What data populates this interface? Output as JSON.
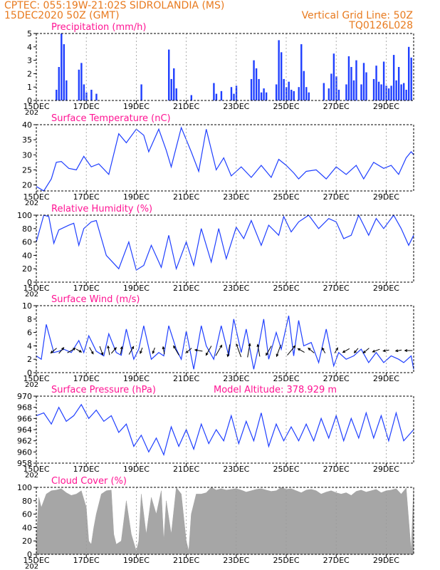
{
  "header": {
    "line1_left": "CPTEC:   055:19W-21:02S   SIDROLANDIA (MS)",
    "line2_left": "15DEC2020 50Z (GMT)",
    "line1_right": "Vertical Grid Line: 50Z",
    "line2_right": "TQ0126L028"
  },
  "colors": {
    "header": "#e87a1e",
    "title": "#ff1493",
    "series": "#1f3fff",
    "cloud": "#a6a6a6",
    "grid": "#9a9a9a",
    "axis": "#000000"
  },
  "x_axis": {
    "tick_labels": [
      "15DEC",
      "17DEC",
      "19DEC",
      "21DEC",
      "23DEC",
      "25DEC",
      "27DEC",
      "29DEC"
    ],
    "first_label_prefix": "202",
    "x_range_days": [
      15,
      30.1
    ]
  },
  "chart_data": [
    {
      "id": "precip",
      "type": "bar",
      "title": "Precipitation (mm/h)",
      "ylim": [
        0,
        5
      ],
      "yticks": [
        "0",
        "1",
        "2",
        "3",
        "4",
        "5"
      ],
      "x": [
        15.8,
        15.9,
        16.0,
        16.1,
        16.2,
        16.7,
        16.8,
        16.9,
        17.0,
        17.2,
        17.4,
        19.2,
        20.3,
        20.4,
        20.5,
        20.6,
        21.2,
        22.1,
        22.2,
        22.4,
        22.8,
        22.9,
        23.0,
        23.6,
        23.7,
        23.8,
        23.9,
        24.0,
        24.1,
        24.2,
        24.6,
        24.7,
        24.8,
        24.9,
        25.0,
        25.1,
        25.2,
        25.3,
        25.5,
        25.6,
        25.7,
        25.8,
        25.9,
        26.5,
        26.7,
        26.8,
        26.9,
        27.0,
        27.1,
        27.4,
        27.5,
        27.6,
        27.7,
        27.8,
        28.0,
        28.1,
        28.2,
        28.5,
        28.6,
        28.7,
        28.8,
        28.9,
        29.0,
        29.1,
        29.2,
        29.3,
        29.4,
        29.5,
        29.6,
        29.7,
        29.8,
        29.9,
        30.0
      ],
      "values": [
        0.8,
        2.5,
        5.0,
        4.2,
        1.5,
        2.3,
        2.8,
        1.2,
        0.6,
        0.8,
        0.5,
        1.2,
        3.8,
        1.6,
        2.4,
        0.9,
        0.4,
        1.3,
        0.5,
        0.7,
        1.0,
        0.5,
        1.1,
        1.6,
        3.0,
        2.4,
        1.6,
        0.6,
        0.9,
        0.6,
        1.2,
        4.5,
        3.6,
        1.6,
        1.0,
        1.4,
        0.8,
        0.7,
        1.0,
        4.2,
        2.2,
        1.0,
        0.6,
        1.3,
        0.9,
        2.0,
        3.5,
        1.8,
        0.8,
        1.2,
        3.3,
        2.5,
        1.5,
        3.0,
        1.2,
        2.8,
        2.1,
        1.6,
        2.6,
        1.4,
        1.2,
        2.9,
        1.1,
        0.9,
        1.1,
        3.4,
        1.5,
        2.5,
        1.2,
        1.3,
        0.8,
        4.0,
        3.2
      ]
    },
    {
      "id": "temp",
      "type": "line",
      "title": "Surface Temperature (nC)",
      "ylim": [
        18,
        40
      ],
      "yticks": [
        "20",
        "25",
        "30",
        "35",
        "40"
      ],
      "x": [
        15.0,
        15.3,
        15.6,
        15.8,
        16.0,
        16.3,
        16.6,
        16.9,
        17.2,
        17.5,
        17.9,
        18.3,
        18.6,
        19.0,
        19.3,
        19.5,
        19.9,
        20.2,
        20.4,
        20.8,
        21.2,
        21.5,
        21.8,
        22.2,
        22.5,
        22.8,
        23.2,
        23.6,
        24.0,
        24.4,
        24.7,
        25.0,
        25.3,
        25.5,
        25.8,
        26.2,
        26.6,
        27.0,
        27.4,
        27.8,
        28.1,
        28.5,
        28.9,
        29.2,
        29.5,
        29.8,
        30.0,
        30.1
      ],
      "values": [
        19.5,
        18.0,
        22.0,
        27.5,
        27.8,
        25.5,
        25.0,
        29.5,
        26.0,
        27.0,
        23.5,
        37.0,
        34.0,
        38.5,
        36.5,
        31.0,
        38.5,
        31.5,
        26.0,
        39.0,
        31.0,
        24.5,
        38.5,
        25.0,
        29.0,
        23.0,
        26.0,
        22.5,
        26.5,
        22.5,
        28.5,
        26.5,
        24.0,
        22.0,
        24.5,
        25.0,
        22.0,
        26.0,
        23.5,
        26.5,
        22.0,
        27.5,
        25.5,
        26.5,
        23.5,
        29.0,
        31.0,
        30.0
      ]
    },
    {
      "id": "rh",
      "type": "line",
      "title": "Relative Humidity (%)",
      "ylim": [
        0,
        100
      ],
      "yticks": [
        "0",
        "20",
        "40",
        "60",
        "80",
        "100"
      ],
      "x": [
        15.0,
        15.3,
        15.5,
        15.7,
        15.9,
        16.3,
        16.5,
        16.7,
        16.9,
        17.2,
        17.4,
        17.8,
        18.3,
        18.7,
        19.0,
        19.3,
        19.6,
        20.0,
        20.3,
        20.6,
        21.0,
        21.3,
        21.6,
        22.0,
        22.3,
        22.6,
        23.0,
        23.3,
        23.6,
        24.0,
        24.3,
        24.7,
        24.9,
        25.2,
        25.5,
        25.9,
        26.3,
        26.7,
        27.0,
        27.3,
        27.6,
        27.9,
        28.3,
        28.6,
        28.9,
        29.3,
        29.6,
        29.9,
        30.1
      ],
      "values": [
        60,
        100,
        98,
        58,
        78,
        85,
        88,
        55,
        80,
        90,
        92,
        40,
        20,
        60,
        18,
        25,
        55,
        22,
        70,
        20,
        60,
        25,
        80,
        30,
        80,
        35,
        82,
        65,
        92,
        55,
        85,
        70,
        98,
        75,
        90,
        100,
        80,
        95,
        90,
        65,
        70,
        100,
        70,
        95,
        80,
        100,
        80,
        55,
        70
      ]
    },
    {
      "id": "wind",
      "type": "line",
      "title": "Surface Wind (m/s)",
      "ylim": [
        0,
        10
      ],
      "yticks": [
        "0",
        "2",
        "4",
        "6",
        "8",
        "10"
      ],
      "x": [
        15.0,
        15.2,
        15.4,
        15.7,
        15.9,
        16.1,
        16.4,
        16.7,
        16.9,
        17.1,
        17.4,
        17.7,
        17.9,
        18.2,
        18.4,
        18.6,
        18.9,
        19.1,
        19.3,
        19.6,
        19.9,
        20.1,
        20.3,
        20.6,
        20.8,
        21.0,
        21.3,
        21.6,
        21.8,
        22.1,
        22.4,
        22.7,
        22.9,
        23.2,
        23.4,
        23.7,
        23.9,
        24.1,
        24.3,
        24.6,
        24.8,
        25.1,
        25.3,
        25.5,
        25.7,
        26.0,
        26.3,
        26.6,
        26.9,
        27.1,
        27.4,
        27.7,
        28.0,
        28.3,
        28.6,
        28.9,
        29.2,
        29.5,
        29.7,
        30.0,
        30.1
      ],
      "values": [
        2.5,
        2.0,
        7.2,
        3.0,
        3.2,
        3.5,
        3.0,
        4.8,
        3.0,
        5.5,
        3.2,
        2.5,
        5.8,
        3.0,
        2.6,
        6.5,
        2.0,
        3.5,
        7.0,
        2.0,
        3.0,
        2.5,
        7.0,
        3.5,
        2.0,
        6.2,
        0.5,
        7.0,
        4.0,
        2.0,
        7.0,
        2.5,
        8.0,
        3.0,
        6.5,
        0.5,
        4.0,
        8.0,
        2.0,
        6.0,
        3.5,
        8.5,
        2.5,
        7.8,
        4.0,
        4.5,
        1.5,
        6.5,
        1.0,
        3.0,
        2.0,
        2.5,
        3.5,
        1.5,
        3.0,
        1.5,
        2.5,
        2.0,
        1.5,
        2.5,
        0.5
      ],
      "arrows": {
        "x": [
          15.7,
          16.0,
          16.4,
          16.7,
          17.2,
          17.6,
          17.9,
          18.1,
          18.4,
          18.8,
          19.2,
          19.7,
          20.1,
          20.6,
          21.1,
          21.5,
          21.9,
          22.3,
          22.7,
          23.1,
          23.5,
          23.9,
          24.3,
          24.7,
          25.2,
          25.6,
          26.0,
          26.5,
          27.0,
          27.4,
          27.8,
          28.2,
          28.6,
          29.0,
          29.5,
          29.9
        ],
        "speed": [
          3,
          3,
          4,
          2,
          3,
          4,
          4,
          3,
          3,
          4,
          2,
          2,
          3,
          5,
          3,
          3,
          5,
          6,
          6,
          7,
          7,
          6,
          5,
          6,
          6,
          3,
          3,
          2,
          2,
          3,
          2,
          3,
          3,
          2,
          2,
          3
        ],
        "dir_to_deg": [
          230,
          40,
          60,
          120,
          150,
          160,
          350,
          40,
          10,
          30,
          200,
          200,
          350,
          330,
          230,
          280,
          210,
          30,
          190,
          340,
          10,
          350,
          210,
          200,
          40,
          300,
          310,
          330,
          30,
          240,
          220,
          230,
          250,
          260,
          260,
          270
        ]
      }
    },
    {
      "id": "pressure",
      "type": "line",
      "title": "Surface Pressure (hPa)",
      "annotation": "Model Altitude: 378.929 m",
      "ylim": [
        958,
        970
      ],
      "yticks": [
        "958",
        "960",
        "962",
        "964",
        "966",
        "968",
        "970"
      ],
      "x": [
        15.0,
        15.3,
        15.6,
        15.9,
        16.2,
        16.5,
        16.8,
        17.1,
        17.4,
        17.7,
        18.0,
        18.3,
        18.6,
        18.9,
        19.2,
        19.5,
        19.8,
        20.1,
        20.4,
        20.7,
        21.0,
        21.3,
        21.6,
        21.9,
        22.2,
        22.5,
        22.8,
        23.1,
        23.4,
        23.7,
        24.0,
        24.3,
        24.6,
        24.9,
        25.2,
        25.5,
        25.8,
        26.1,
        26.4,
        26.7,
        27.0,
        27.3,
        27.6,
        27.9,
        28.2,
        28.5,
        28.8,
        29.1,
        29.4,
        29.7,
        30.0,
        30.1
      ],
      "values": [
        966.5,
        967.0,
        965.0,
        968.0,
        965.5,
        966.5,
        968.5,
        966.0,
        967.5,
        965.5,
        966.5,
        963.5,
        965.0,
        961.0,
        963.0,
        960.0,
        962.5,
        959.5,
        964.5,
        961.0,
        964.0,
        960.5,
        965.0,
        961.5,
        964.0,
        962.0,
        966.5,
        961.5,
        965.5,
        962.0,
        967.0,
        961.0,
        965.0,
        962.0,
        964.5,
        962.0,
        965.0,
        962.0,
        966.0,
        962.5,
        966.5,
        962.0,
        966.0,
        962.5,
        967.0,
        962.5,
        966.5,
        962.0,
        967.0,
        962.0,
        963.5,
        964.0
      ]
    },
    {
      "id": "cloud",
      "type": "area",
      "title": "Cloud Cover (%)",
      "ylim": [
        0,
        100
      ],
      "yticks": [
        "0",
        "20",
        "40",
        "60",
        "80",
        "100"
      ],
      "x": [
        15.0,
        15.1,
        15.2,
        15.4,
        15.6,
        15.8,
        16.0,
        16.2,
        16.4,
        16.6,
        16.8,
        17.0,
        17.1,
        17.2,
        17.3,
        17.4,
        17.6,
        17.8,
        18.0,
        18.1,
        18.2,
        18.4,
        18.6,
        18.8,
        19.0,
        19.1,
        19.2,
        19.4,
        19.6,
        19.8,
        20.0,
        20.1,
        20.2,
        20.4,
        20.6,
        20.8,
        21.0,
        21.1,
        21.2,
        21.4,
        21.6,
        21.8,
        22.0,
        22.2,
        22.4,
        22.6,
        22.8,
        23.0,
        23.2,
        23.4,
        23.6,
        23.8,
        24.0,
        24.2,
        24.4,
        24.6,
        24.8,
        25.0,
        25.2,
        25.4,
        25.6,
        25.8,
        26.0,
        26.2,
        26.4,
        26.6,
        26.8,
        27.0,
        27.2,
        27.4,
        27.6,
        27.8,
        28.0,
        28.2,
        28.4,
        28.6,
        28.8,
        29.0,
        29.2,
        29.4,
        29.6,
        29.8,
        30.0,
        30.1
      ],
      "values": [
        20,
        85,
        70,
        90,
        95,
        96,
        98,
        92,
        88,
        90,
        95,
        70,
        20,
        15,
        40,
        60,
        90,
        95,
        96,
        30,
        15,
        20,
        80,
        30,
        5,
        20,
        90,
        30,
        85,
        60,
        95,
        20,
        80,
        30,
        100,
        90,
        20,
        5,
        60,
        90,
        90,
        92,
        100,
        96,
        98,
        96,
        97,
        98,
        96,
        93,
        95,
        97,
        98,
        96,
        94,
        95,
        100,
        97,
        98,
        95,
        92,
        96,
        97,
        95,
        90,
        93,
        95,
        92,
        90,
        92,
        88,
        94,
        96,
        93,
        95,
        97,
        92,
        95,
        96,
        98,
        90,
        99,
        5,
        100
      ]
    }
  ]
}
